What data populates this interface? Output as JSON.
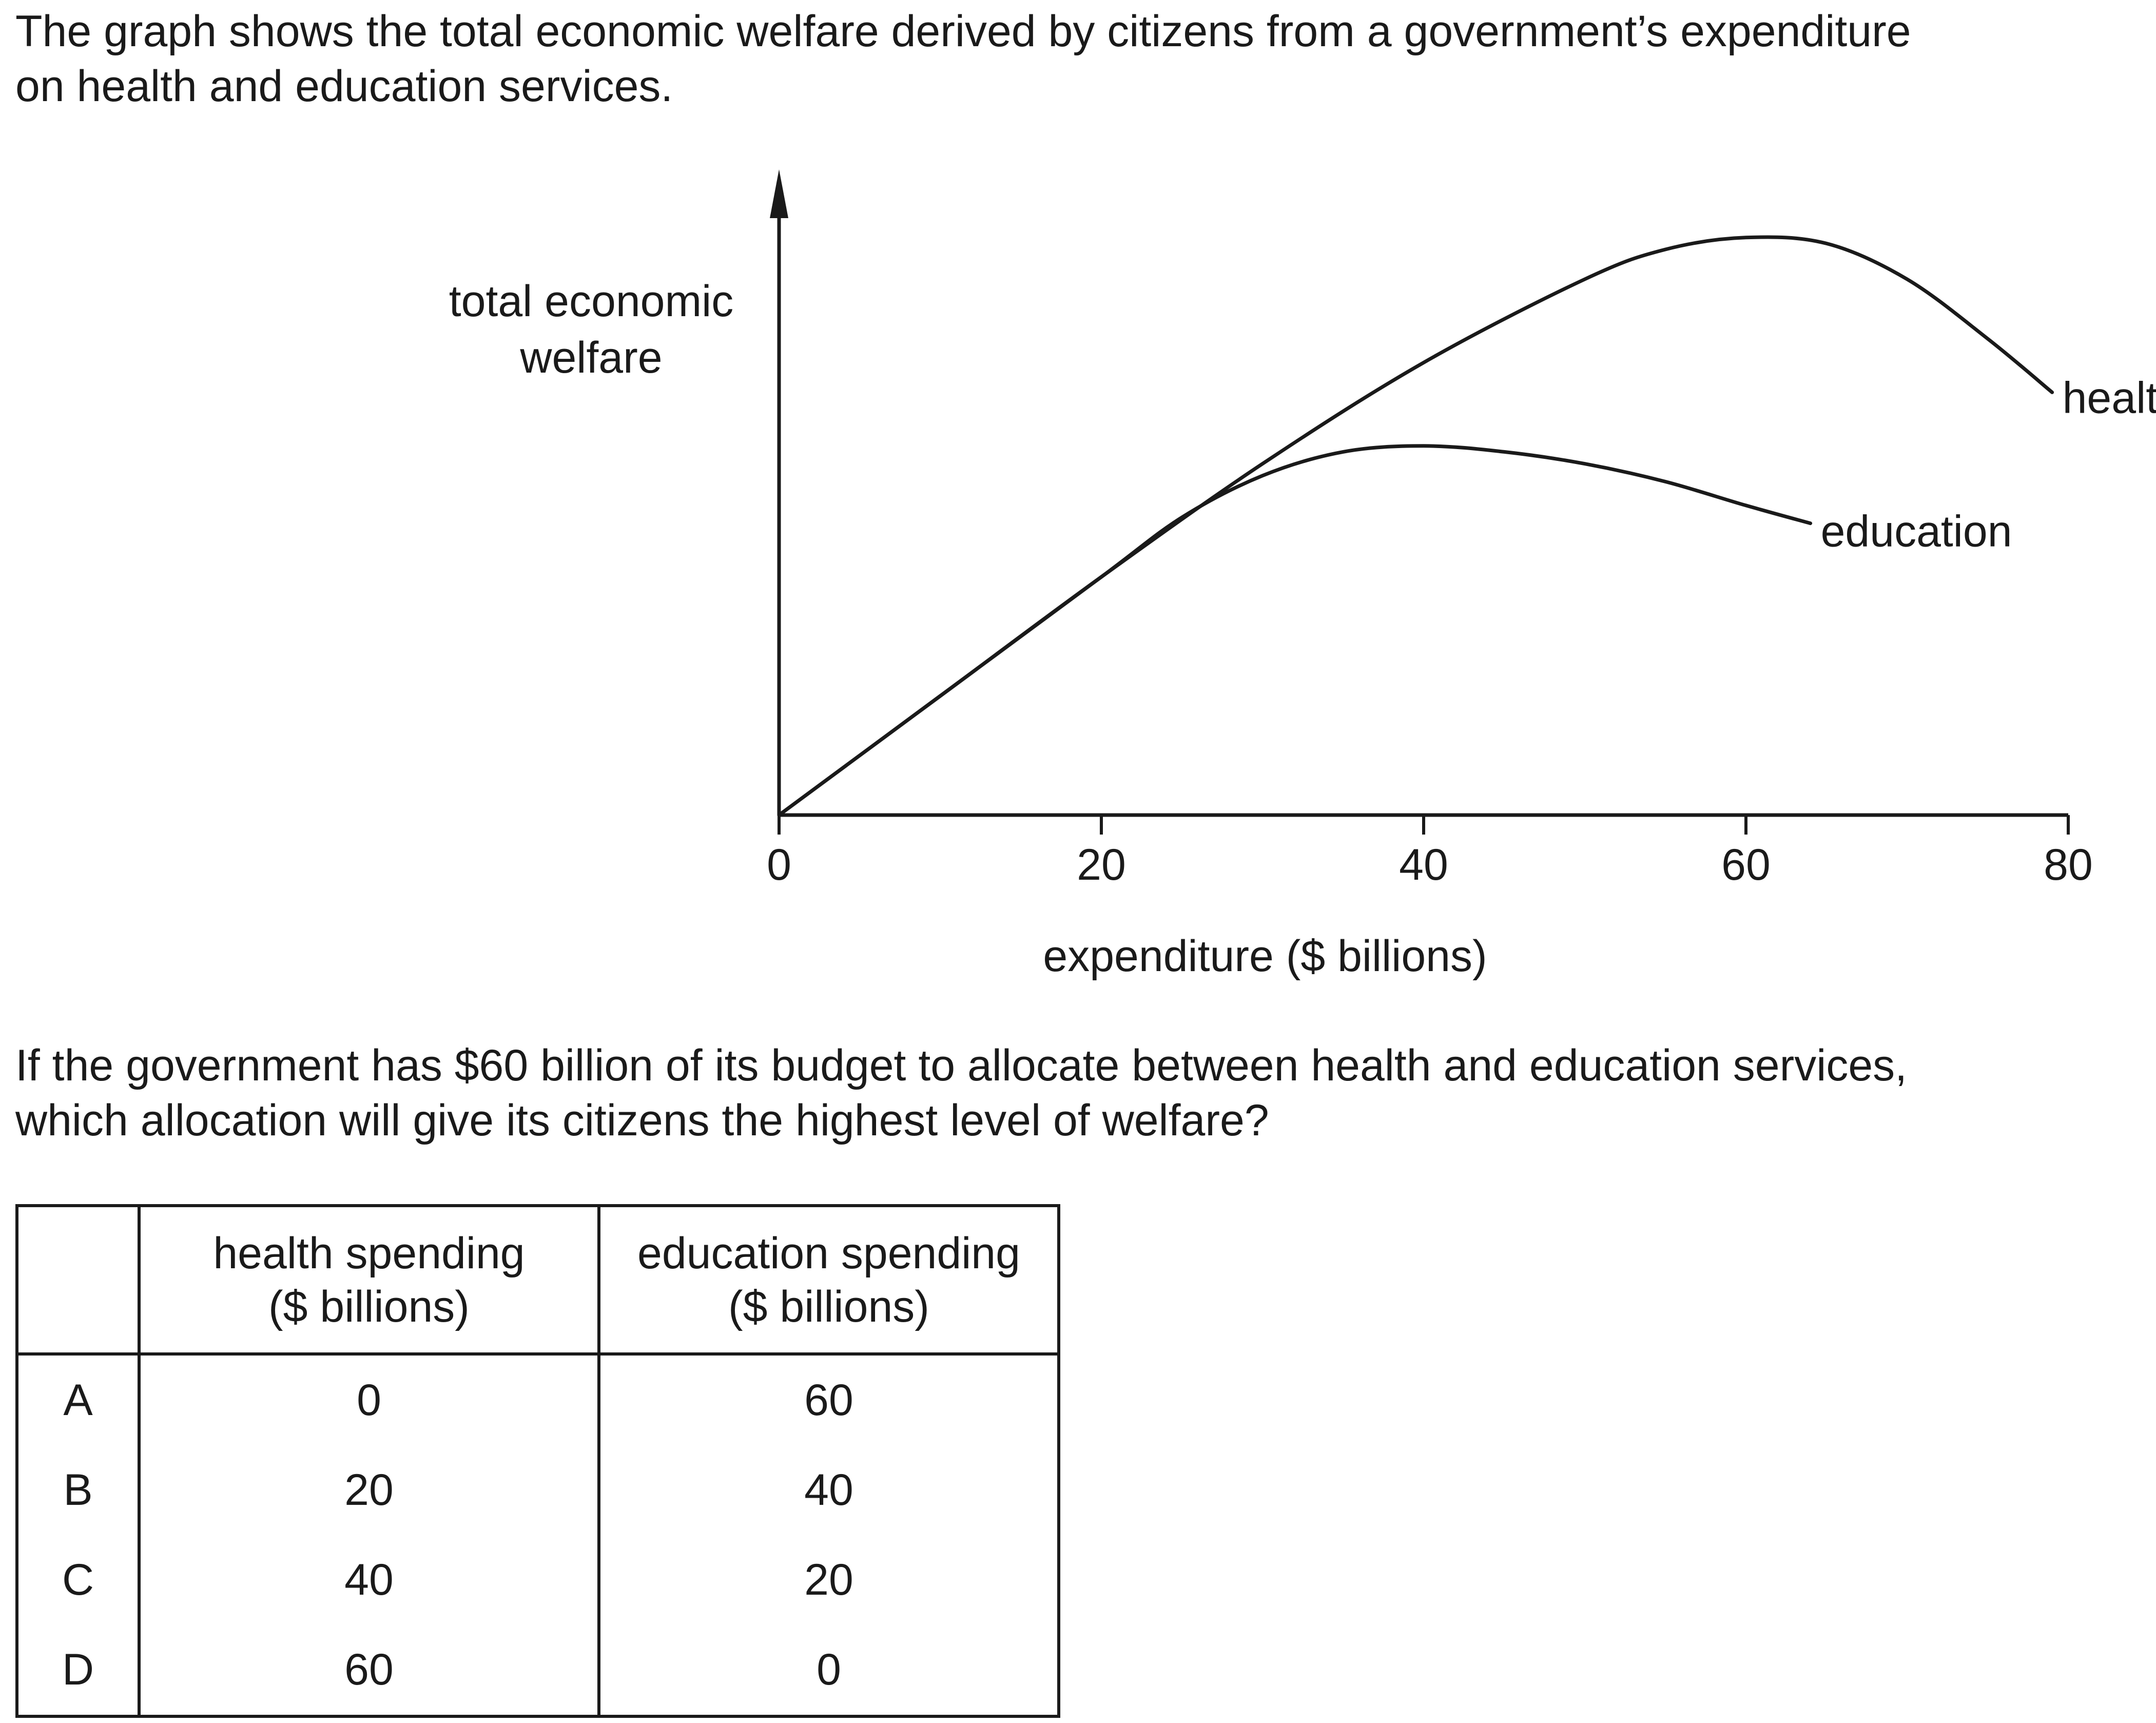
{
  "intro": {
    "line1": "The graph shows the total economic welfare derived by citizens from a government’s expenditure",
    "line2": "on health and education services."
  },
  "chart_data": {
    "type": "line",
    "ylabel": [
      "total economic",
      "welfare"
    ],
    "xlabel": "expenditure ($ billions)",
    "xticks": [
      0,
      20,
      40,
      60,
      80
    ],
    "xlim": [
      0,
      80
    ],
    "ylim": [
      0,
      100
    ],
    "series": [
      {
        "name": "health",
        "x": [
          0,
          10,
          20,
          30,
          40,
          50,
          55,
          60,
          65,
          70,
          75,
          79
        ],
        "y": [
          0,
          20,
          40,
          59,
          76,
          90,
          95,
          97,
          96,
          90,
          80,
          71
        ]
      },
      {
        "name": "education",
        "x": [
          0,
          10,
          20,
          25,
          30,
          35,
          40,
          45,
          50,
          55,
          60,
          64
        ],
        "y": [
          0,
          20,
          40,
          50,
          57,
          61,
          62,
          61,
          59,
          56,
          52,
          49
        ]
      }
    ]
  },
  "question": {
    "line1": "If the government has $60 billion of its budget to allocate between health and education services,",
    "line2": "which allocation will give its citizens the highest level of welfare?"
  },
  "table": {
    "headers": [
      [
        "health spending",
        "($ billions)"
      ],
      [
        "education spending",
        "($ billions)"
      ]
    ],
    "rows": [
      {
        "option": "A",
        "health": "0",
        "education": "60"
      },
      {
        "option": "B",
        "health": "20",
        "education": "40"
      },
      {
        "option": "C",
        "health": "40",
        "education": "20"
      },
      {
        "option": "D",
        "health": "60",
        "education": "0"
      }
    ]
  }
}
